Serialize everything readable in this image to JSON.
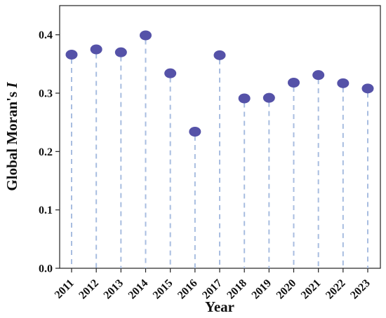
{
  "chart_data": {
    "type": "scatter",
    "style": "lollipop",
    "title": "",
    "xlabel": "Year",
    "ylabel_prefix": "Global Moran's ",
    "ylabel_italic": "I",
    "x": [
      "2011",
      "2012",
      "2013",
      "2014",
      "2015",
      "2016",
      "2017",
      "2018",
      "2019",
      "2020",
      "2021",
      "2022",
      "2023"
    ],
    "y": [
      0.366,
      0.375,
      0.37,
      0.399,
      0.334,
      0.234,
      0.365,
      0.291,
      0.292,
      0.318,
      0.331,
      0.317,
      0.308
    ],
    "ylim": [
      0,
      0.45
    ],
    "yticks": [
      "0.0",
      "0.1",
      "0.2",
      "0.3",
      "0.4"
    ],
    "grid": false,
    "legend": "none",
    "marker_color": "#5552a8",
    "stem_color": "#a8bde0"
  }
}
